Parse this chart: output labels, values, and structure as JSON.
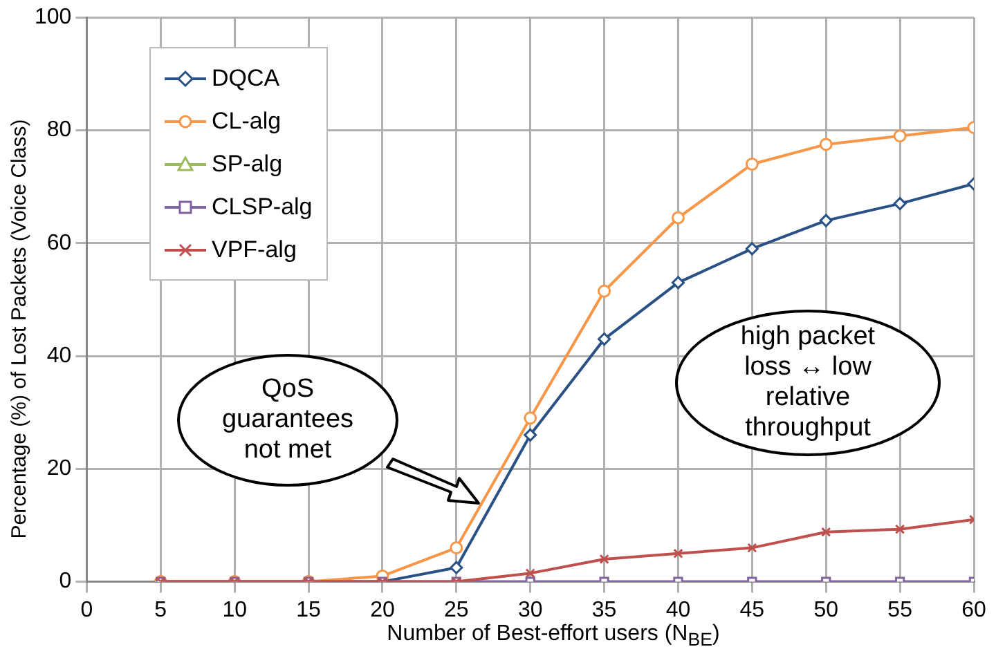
{
  "chart_data": {
    "type": "line",
    "xlabel": "Number of Best-effort users (N$_{BE}$)",
    "ylabel": "Percentage (%) of Lost Packets (Voice Class)",
    "x": [
      5,
      10,
      15,
      20,
      25,
      30,
      35,
      40,
      45,
      50,
      55,
      60
    ],
    "series": [
      {
        "name": "DQCA",
        "color": "#2a5185",
        "marker": "diamond",
        "values": [
          0,
          0,
          0,
          0,
          2.5,
          26,
          43,
          53,
          59,
          64,
          67,
          70.5
        ]
      },
      {
        "name": "CL-alg",
        "color": "#f79646",
        "marker": "circle",
        "values": [
          0,
          0,
          0,
          1,
          6,
          29,
          51.5,
          64.5,
          74,
          77.5,
          79,
          80.5
        ]
      },
      {
        "name": "SP-alg",
        "color": "#9bbb59",
        "marker": "triangle",
        "values": [
          null,
          null,
          null,
          null,
          null,
          null,
          null,
          null,
          null,
          null,
          null,
          null
        ]
      },
      {
        "name": "CLSP-alg",
        "color": "#8064a2",
        "marker": "square",
        "values": [
          0,
          0,
          0,
          0,
          0,
          0,
          0,
          0,
          0,
          0,
          0,
          0
        ]
      },
      {
        "name": "VPF-alg",
        "color": "#c0504d",
        "marker": "cross",
        "values": [
          0,
          0,
          0,
          0,
          0,
          1.5,
          4,
          5,
          6,
          8.8,
          9.3,
          11
        ]
      }
    ],
    "xlim": [
      0,
      60
    ],
    "xticks": [
      0,
      5,
      10,
      15,
      20,
      25,
      30,
      35,
      40,
      45,
      50,
      55,
      60
    ],
    "ylim": [
      0,
      100
    ],
    "yticks": [
      0,
      20,
      40,
      60,
      80,
      100
    ],
    "grid": true,
    "legend": "top left",
    "line_style": "solid",
    "annotations": [
      "QoS guarantees not met",
      "high packet loss ↔ low relative throughput"
    ]
  }
}
